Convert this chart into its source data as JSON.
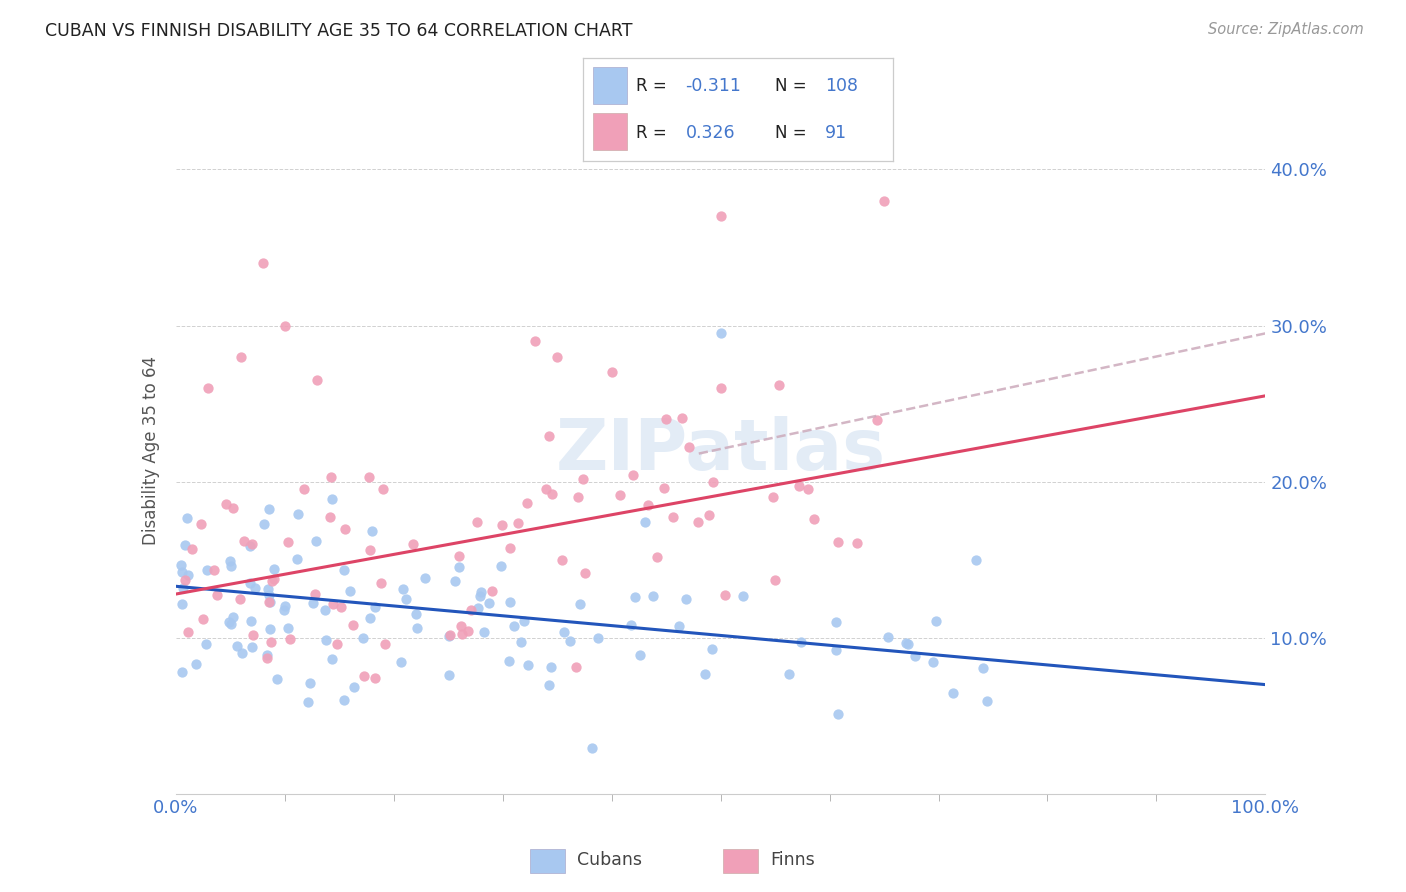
{
  "title": "CUBAN VS FINNISH DISABILITY AGE 35 TO 64 CORRELATION CHART",
  "source": "Source: ZipAtlas.com",
  "ylabel": "Disability Age 35 to 64",
  "cubans_color": "#a8c8f0",
  "finns_color": "#f0a0b8",
  "cubans_line_color": "#2255bb",
  "finns_line_color": "#dd4466",
  "dash_color": "#ccaabb",
  "background_color": "#ffffff",
  "watermark": "ZIPatlas",
  "xlim": [
    0.0,
    1.0
  ],
  "ylim": [
    0.0,
    0.44
  ],
  "yticks": [
    0.1,
    0.2,
    0.3,
    0.4
  ],
  "ytick_labels": [
    "10.0%",
    "20.0%",
    "30.0%",
    "40.0%"
  ],
  "cubans_line_x0": 0.0,
  "cubans_line_y0": 0.133,
  "cubans_line_x1": 1.0,
  "cubans_line_y1": 0.07,
  "finns_line_x0": 0.0,
  "finns_line_y0": 0.128,
  "finns_line_x1": 1.0,
  "finns_line_y1": 0.255,
  "dash_line_x0": 0.48,
  "dash_line_y0": 0.218,
  "dash_line_x1": 1.0,
  "dash_line_y1": 0.295,
  "cubans_N": 108,
  "finns_N": 91,
  "cubans_R": -0.311,
  "finns_R": 0.326
}
